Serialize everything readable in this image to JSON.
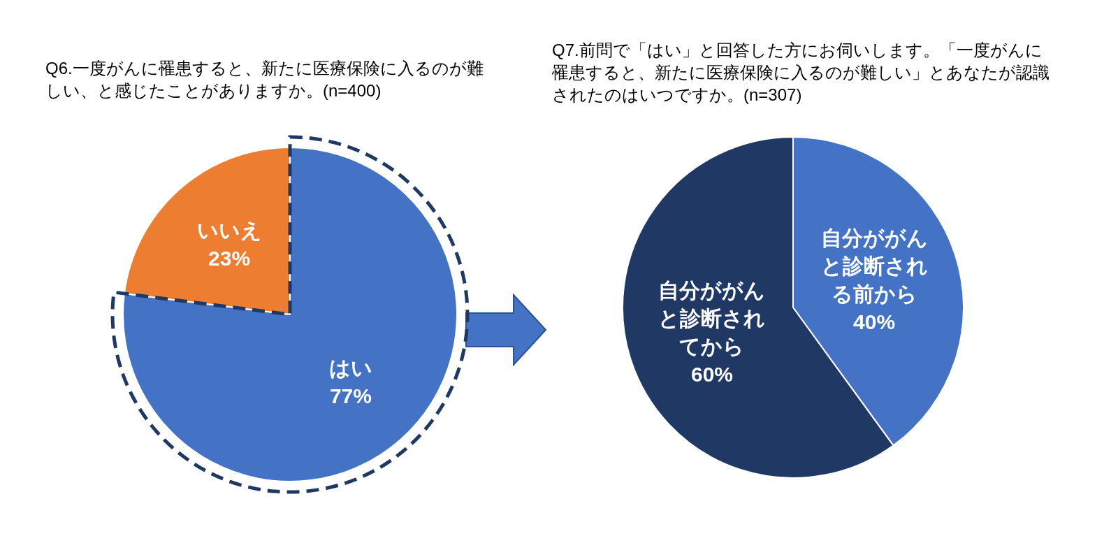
{
  "chart_data": [
    {
      "type": "pie",
      "title": "Q6.一度がんに罹患すると、新たに医療保険に入るのが難しい、と感じたことがありますか。(n=400)",
      "categories": [
        "はい",
        "いいえ"
      ],
      "values": [
        77,
        23
      ],
      "colors": [
        "#4472c4",
        "#ed7d31"
      ],
      "value_labels": [
        "77%",
        "23%"
      ],
      "legend": false
    },
    {
      "type": "pie",
      "title": "Q7.前問で「はい」と回答した方にお伺いします。「一度がんに罹患すると、新たに医療保険に入るのが難しい」とあなたが認識されたのはいつですか。(n=307)",
      "categories": [
        "自分ががんと診断される前から",
        "自分ががんと診断されてから"
      ],
      "values": [
        40,
        60
      ],
      "colors": [
        "#4472c4",
        "#203864"
      ],
      "value_labels": [
        "40%",
        "60%"
      ],
      "legend": false
    }
  ]
}
